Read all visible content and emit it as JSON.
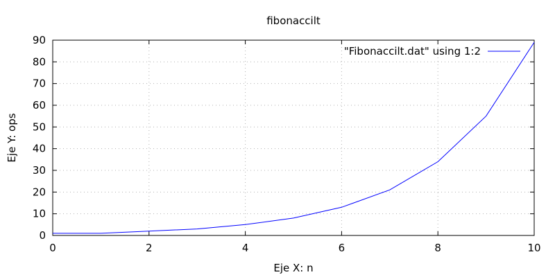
{
  "chart_data": {
    "type": "line",
    "title": "fibonaccilt",
    "xlabel": "Eje X: n",
    "ylabel": "Eje Y: ops",
    "xlim": [
      0,
      10
    ],
    "ylim": [
      0,
      90
    ],
    "xticks": [
      0,
      2,
      4,
      6,
      8,
      10
    ],
    "yticks": [
      0,
      10,
      20,
      30,
      40,
      50,
      60,
      70,
      80,
      90
    ],
    "grid": true,
    "legend_position": "top-right",
    "series": [
      {
        "name": "\"Fibonaccilt.dat\" using 1:2",
        "color": "#0000ff",
        "x": [
          0,
          1,
          2,
          3,
          4,
          5,
          6,
          7,
          8,
          9,
          10
        ],
        "y": [
          1,
          1,
          2,
          3,
          5,
          8,
          13,
          21,
          34,
          55,
          89
        ]
      }
    ]
  }
}
